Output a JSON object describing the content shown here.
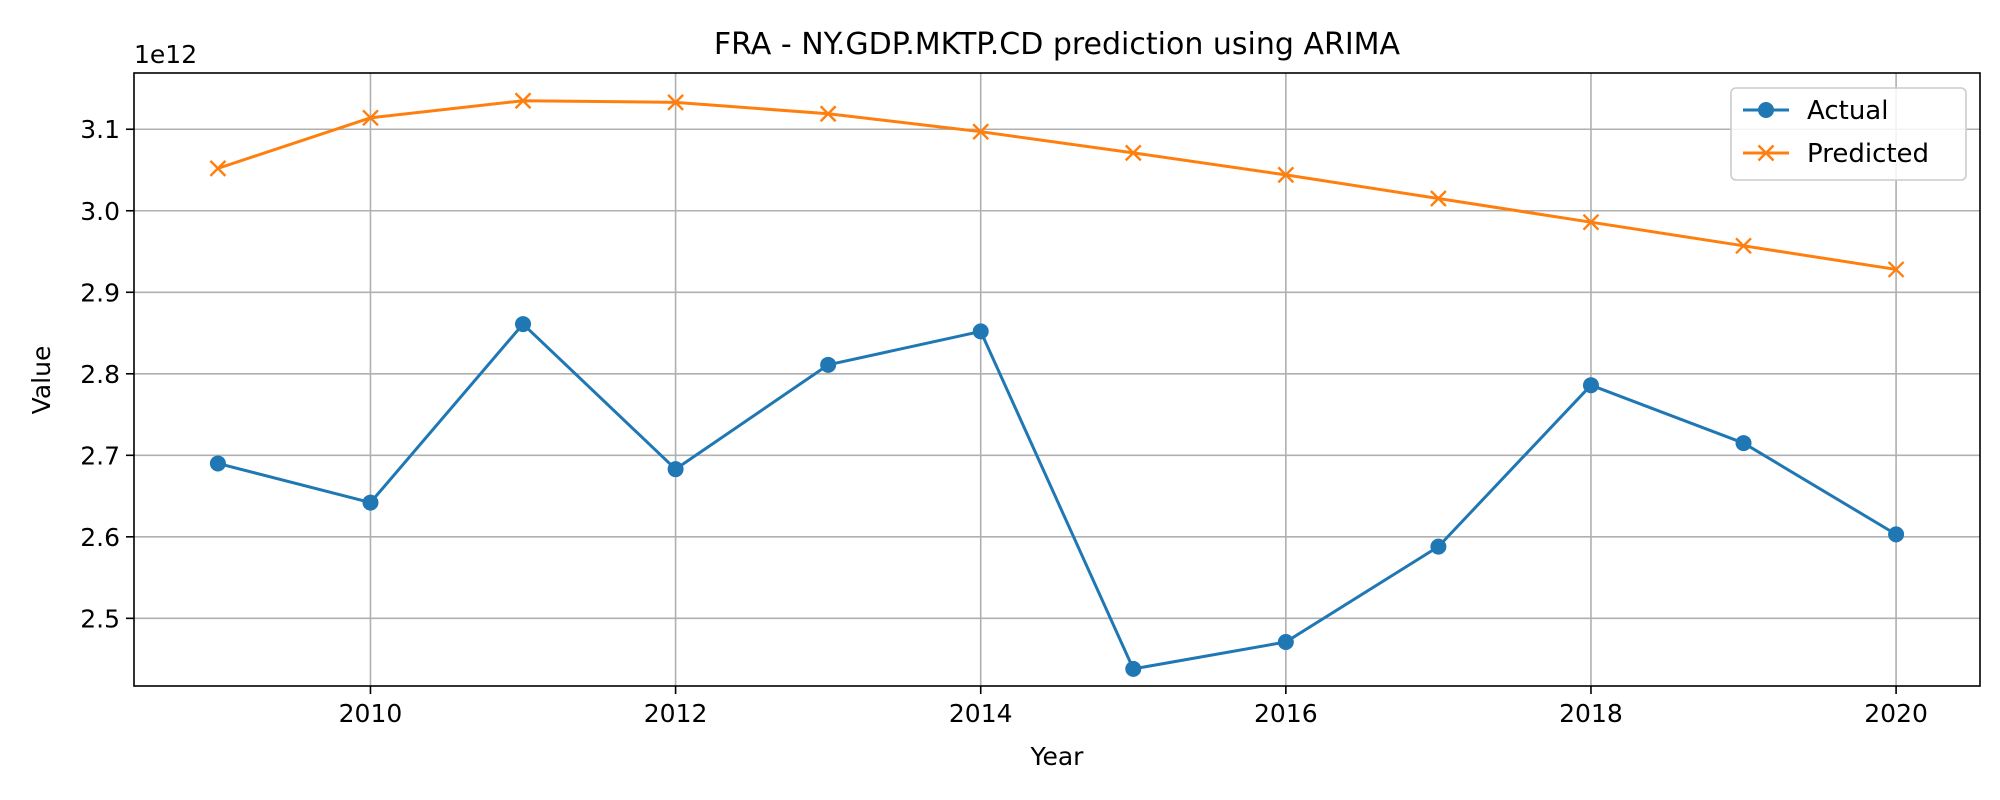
{
  "chart_data": {
    "type": "line",
    "title": "FRA - NY.GDP.MKTP.CD prediction using ARIMA",
    "xlabel": "Year",
    "ylabel": "Value",
    "y_offset_label": "1e12",
    "y_scale": 1000000000000.0,
    "x": [
      2009,
      2010,
      2011,
      2012,
      2013,
      2014,
      2015,
      2016,
      2017,
      2018,
      2019,
      2020
    ],
    "xlim": [
      2008.45,
      2020.55
    ],
    "ylim": [
      2.417,
      3.169
    ],
    "xticks": [
      2010,
      2012,
      2014,
      2016,
      2018,
      2020
    ],
    "xtick_labels": [
      "2010",
      "2012",
      "2014",
      "2016",
      "2018",
      "2020"
    ],
    "yticks": [
      2.5,
      2.6,
      2.7,
      2.8,
      2.9,
      3.0,
      3.1
    ],
    "ytick_labels": [
      "2.5",
      "2.6",
      "2.7",
      "2.8",
      "2.9",
      "3.0",
      "3.1"
    ],
    "grid": true,
    "legend_position": "upper right",
    "series": [
      {
        "name": "Actual",
        "color": "#1f77b4",
        "marker": "circle",
        "values": [
          2.69,
          2.642,
          2.861,
          2.683,
          2.811,
          2.852,
          2.438,
          2.471,
          2.588,
          2.786,
          2.715,
          2.603
        ]
      },
      {
        "name": "Predicted",
        "color": "#ff7f0e",
        "marker": "x",
        "values": [
          3.052,
          3.114,
          3.135,
          3.133,
          3.119,
          3.097,
          3.071,
          3.044,
          3.015,
          2.986,
          2.957,
          2.928
        ]
      }
    ]
  }
}
